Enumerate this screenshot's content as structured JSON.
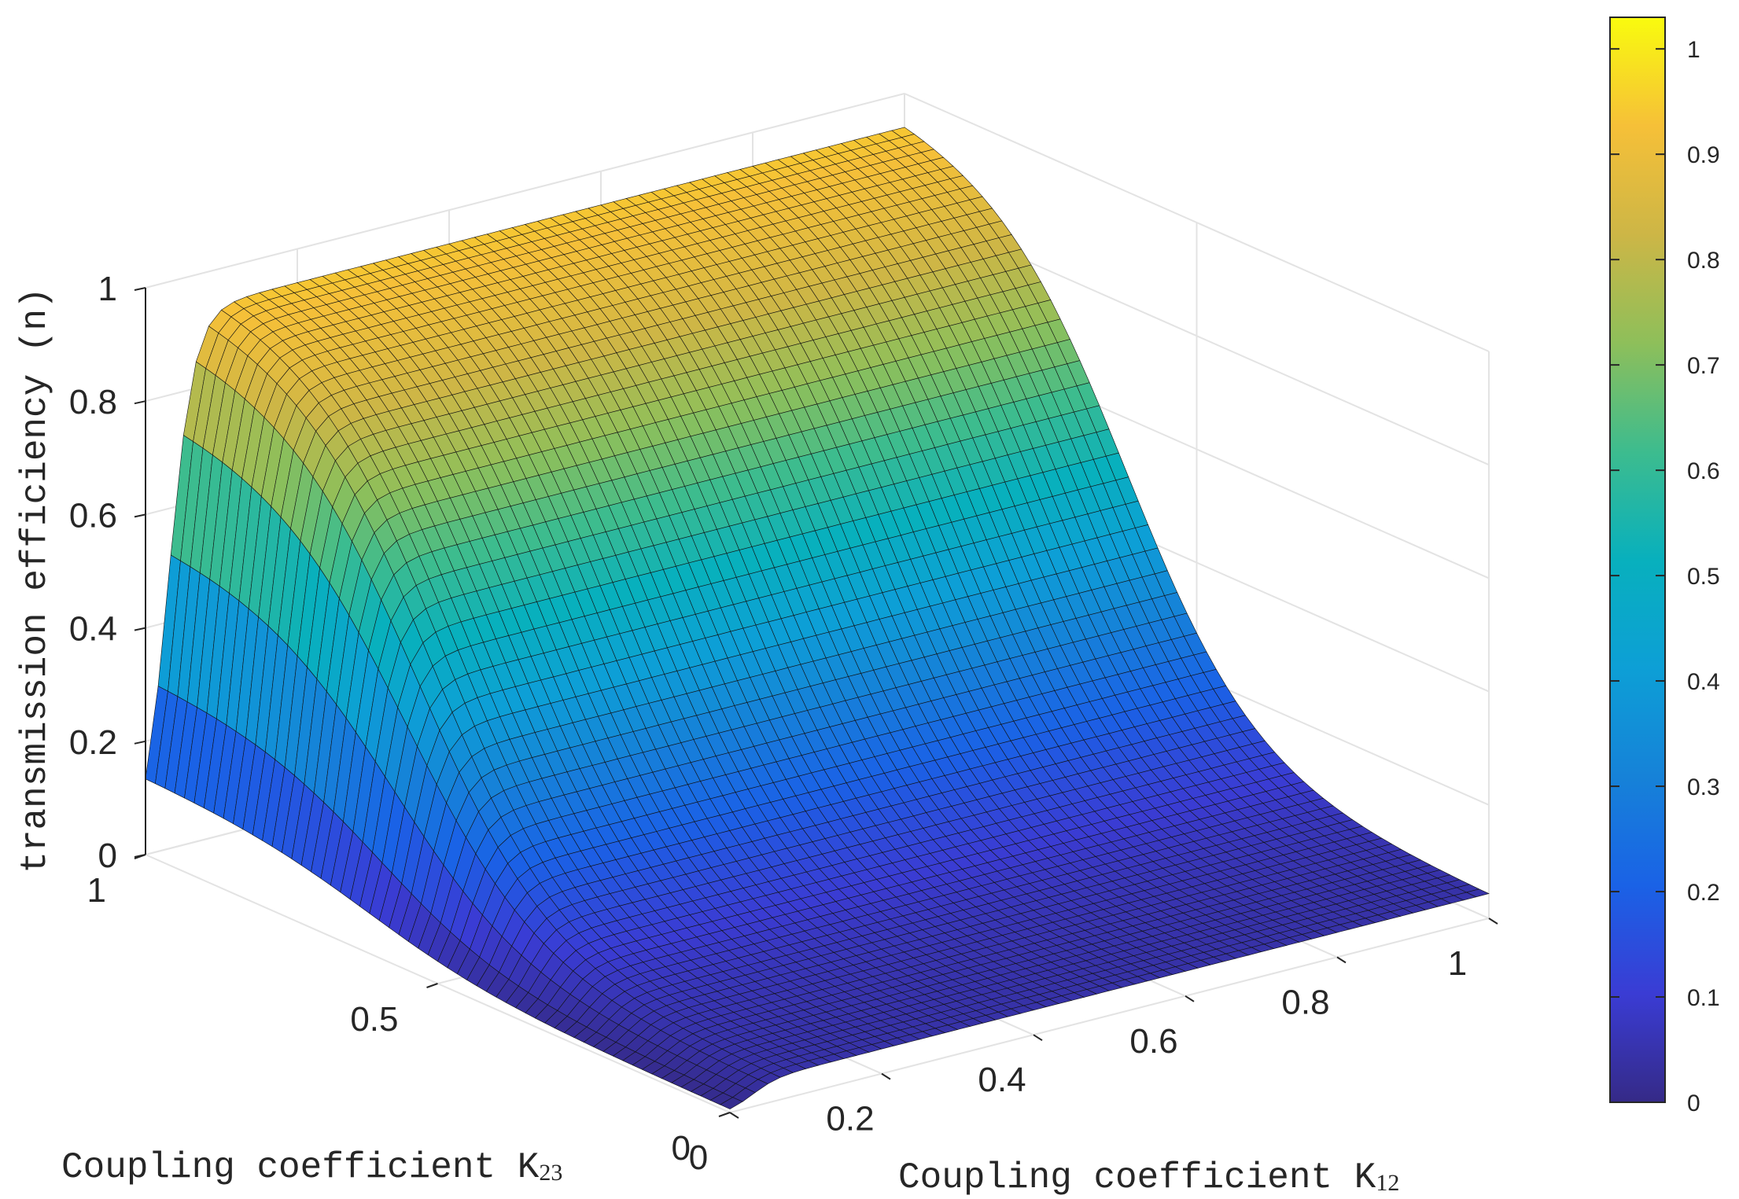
{
  "chart_data": {
    "type": "surface",
    "colormap": "parula",
    "x_axis": {
      "label": "Coupling coefficient K",
      "label_subscript": "12",
      "range": [
        0,
        1
      ],
      "ticks": [
        0,
        0.2,
        0.4,
        0.6,
        0.8,
        1
      ],
      "tick_labels": [
        "0",
        "0.2",
        "0.4",
        "0.6",
        "0.8",
        "1"
      ]
    },
    "y_axis": {
      "label": "Coupling coefficient K",
      "label_subscript": "23",
      "range": [
        0,
        1
      ],
      "ticks": [
        0,
        0.5,
        1
      ],
      "tick_labels": [
        "0",
        "0.5",
        "1"
      ]
    },
    "z_axis": {
      "label": "transmission efficiency (n)",
      "range": [
        0,
        1
      ],
      "ticks": [
        0,
        0.2,
        0.4,
        0.6,
        0.8,
        1
      ],
      "tick_labels": [
        "0",
        "0.2",
        "0.4",
        "0.6",
        "0.8",
        "1"
      ]
    },
    "colorbar": {
      "range": [
        0,
        1.03
      ],
      "ticks": [
        0,
        0.1,
        0.2,
        0.3,
        0.4,
        0.5,
        0.6,
        0.7,
        0.8,
        0.9,
        1
      ],
      "tick_labels": [
        "0",
        "0.1",
        "0.2",
        "0.3",
        "0.4",
        "0.5",
        "0.6",
        "0.7",
        "0.8",
        "0.9",
        "1"
      ],
      "location": "right"
    },
    "grid": true,
    "surface_description_values": {
      "z_at_k12_0_k23_1": 0.0,
      "z_at_k12_1_k23_1": 0.89,
      "z_at_k12_1_k23_0": 0.0,
      "z_plateau_max": 0.93
    }
  }
}
